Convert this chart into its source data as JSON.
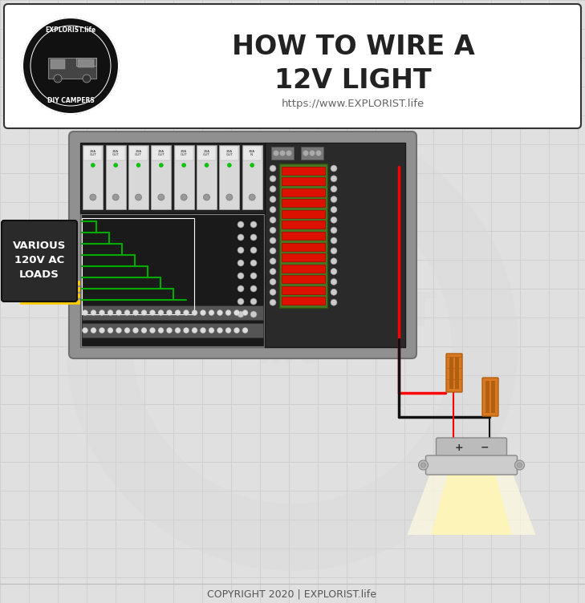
{
  "title_line1": "HOW TO WIRE A",
  "title_line2": "12V LIGHT",
  "subtitle": "https://www.EXPLORIST.life",
  "copyright": "COPYRIGHT 2020 | EXPLORIST.life",
  "bg_color": "#e0e0e0",
  "header_bg": "#ffffff",
  "grid_color": "#c8c8c8",
  "red_wire": "#ff0000",
  "black_wire": "#111111",
  "yellow_wire": "#ffcc00",
  "green_wire": "#00aa00",
  "orange_connector": "#d97820",
  "light_glow": "#fffaaa",
  "label_box_color": "#2a2a2a",
  "label_text": "VARIOUS\n120V AC\nLOADS",
  "watermark_color": "#cccccc",
  "breaker_labels": [
    "20A\nOUT",
    "20A\nOUT",
    "20A\nOUT",
    "20A\nOUT",
    "20A\nOUT",
    "20A\nOUT",
    "20A\nOUT",
    "30A\nIN"
  ]
}
